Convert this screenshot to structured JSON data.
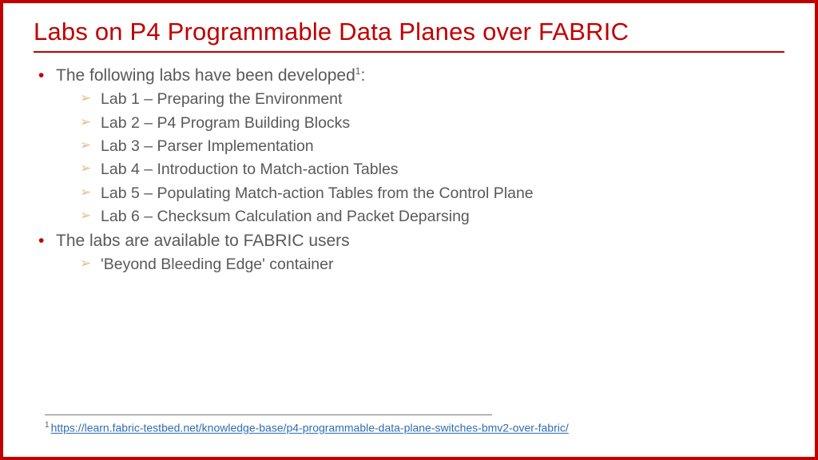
{
  "title": "Labs on P4 Programmable Data Planes over FABRIC",
  "body": {
    "item1": {
      "text_a": "The following labs have been developed",
      "sup": "1",
      "text_b": ":",
      "labs": [
        "Lab 1 – Preparing the Environment",
        "Lab 2 – P4 Program Building Blocks",
        "Lab 3 – Parser Implementation",
        "Lab 4 – Introduction to Match-action Tables",
        "Lab 5 – Populating Match-action Tables from the Control Plane",
        "Lab 6 – Checksum Calculation and Packet Deparsing"
      ]
    },
    "item2": {
      "text": "The labs are available to FABRIC users",
      "sub": [
        "'Beyond Bleeding Edge' container"
      ]
    }
  },
  "footnote": {
    "num": "1",
    "url": "https://learn.fabric-testbed.net/knowledge-base/p4-programmable-data-plane-switches-bmv2-over-fabric/"
  },
  "colors": {
    "accent": "#c00000",
    "text": "#595959",
    "chevron": "#e8b98a",
    "link": "#2e6db5"
  }
}
